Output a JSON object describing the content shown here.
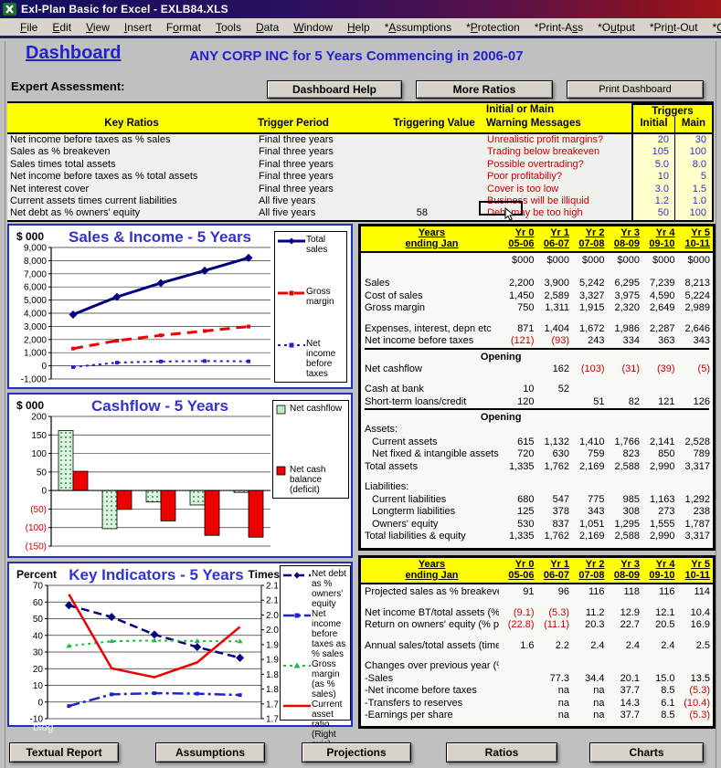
{
  "window": {
    "title": "Exl-Plan Basic for Excel - EXLB84.XLS"
  },
  "menu": {
    "items": [
      {
        "label": "File",
        "accel": 0
      },
      {
        "label": "Edit",
        "accel": 0
      },
      {
        "label": "View",
        "accel": 0
      },
      {
        "label": "Insert",
        "accel": 0
      },
      {
        "label": "Format",
        "accel": 1
      },
      {
        "label": "Tools",
        "accel": 0
      },
      {
        "label": "Data",
        "accel": 0
      },
      {
        "label": "Window",
        "accel": 0
      },
      {
        "label": "Help",
        "accel": 0
      },
      {
        "label": "*Assumptions",
        "accel": 1
      },
      {
        "label": "*Protection",
        "accel": 1
      },
      {
        "label": "*Print-Ass",
        "accel": 8
      },
      {
        "label": "*Output",
        "accel": 2
      },
      {
        "label": "*Print-Out",
        "accel": 4
      },
      {
        "label": "*Charts",
        "accel": 1
      }
    ]
  },
  "header": {
    "dashboard_label": "Dashboard",
    "title": "ANY CORP INC for 5 Years Commencing in 2006-07",
    "expert_assessment": "Expert Assessment:",
    "buttons": [
      "Dashboard Help",
      "More Ratios",
      "Print Dashboard"
    ]
  },
  "assessment": {
    "headers": {
      "key_ratios": "Key Ratios",
      "trigger_period": "Trigger Period",
      "triggering_value": "Triggering Value",
      "initial_or_main": "Initial or Main",
      "warning_messages": "Warning Messages",
      "triggers": "Triggers",
      "initial": "Initial",
      "main": "Main"
    },
    "rows": [
      {
        "ratio": "Net income before taxes as % sales",
        "period": "Final three years",
        "value": "",
        "warning": "Unrealistic profit margins?",
        "initial": "20",
        "main": "30"
      },
      {
        "ratio": "Sales as % breakeven",
        "period": "Final three years",
        "value": "",
        "warning": "Trading below breakeven",
        "initial": "105",
        "main": "100"
      },
      {
        "ratio": "Sales times total assets",
        "period": "Final three years",
        "value": "",
        "warning": "Possible overtrading?",
        "initial": "5.0",
        "main": "8.0"
      },
      {
        "ratio": "Net income before taxes as % total assets",
        "period": "Final three years",
        "value": "",
        "warning": "Poor profitabiliy?",
        "initial": "10",
        "main": "5"
      },
      {
        "ratio": "Net interest cover",
        "period": "Final three years",
        "value": "",
        "warning": "Cover is too low",
        "initial": "3.0",
        "main": "1.5"
      },
      {
        "ratio": "Current assets times current liabilities",
        "period": "All five years",
        "value": "",
        "warning": "Business will be illiquid",
        "initial": "1.2",
        "main": "1.0"
      },
      {
        "ratio": "Net debt as % owners' equity",
        "period": "All five years",
        "value": "58",
        "warning": "Debt may be too high",
        "initial": "50",
        "main": "100"
      }
    ]
  },
  "charts": [
    {
      "type": "line",
      "title": "Sales & Income - 5 Years",
      "unit_label": "$ 000",
      "y_ticks": [
        "9,000",
        "8,000",
        "7,000",
        "6,000",
        "5,000",
        "4,000",
        "3,000",
        "2,000",
        "1,000",
        "0",
        "-1,000"
      ],
      "y_min": -1000,
      "y_max": 9000,
      "series": [
        {
          "name": "Total sales",
          "color": "#000080",
          "dash": "",
          "width": 3,
          "marker": "diamond",
          "values": [
            3900,
            5242,
            6295,
            7239,
            8213
          ]
        },
        {
          "name": "Gross margin",
          "color": "#ee0000",
          "dash": "11,7",
          "width": 3,
          "marker": "square",
          "values": [
            1311,
            1915,
            2320,
            2649,
            2989
          ]
        },
        {
          "name": "Net income before taxes",
          "color": "#2222cc",
          "dash": "3,4",
          "width": 2,
          "marker": "square",
          "values": [
            -93,
            243,
            334,
            363,
            343
          ]
        }
      ]
    },
    {
      "type": "bar",
      "title": "Cashflow - 5 Years",
      "unit_label": "$ 000",
      "y_ticks": [
        "200",
        "150",
        "100",
        "50",
        "0",
        "(50)",
        "(100)",
        "(150)"
      ],
      "y_min": -150,
      "y_max": 200,
      "series": [
        {
          "name": "Net cashflow",
          "fill": "pattern-green",
          "values": [
            162,
            -103,
            -31,
            -39,
            -5
          ]
        },
        {
          "name": "Net cash balance (deficit)",
          "fill": "#ee0000",
          "values": [
            52,
            -51,
            -82,
            -121,
            -126
          ]
        }
      ]
    },
    {
      "type": "dual-line",
      "title": "Key Indicators - 5 Years",
      "left_label": "Percent",
      "right_label": "Times",
      "left_ticks": [
        "70",
        "60",
        "50",
        "40",
        "30",
        "20",
        "10",
        "0",
        "-10"
      ],
      "left_min": -10,
      "left_max": 70,
      "right_ticks": [
        "2.1",
        "2.1",
        "2.0",
        "2.0",
        "1.9",
        "1.9",
        "1.8",
        "1.8",
        "1.7",
        "1.7"
      ],
      "right_min": 1.65,
      "right_max": 2.1,
      "series": [
        {
          "name": "Net debt as % owners' equity",
          "axis": "left",
          "color": "#000080",
          "dash": "9,5",
          "width": 2.5,
          "marker": "diamond",
          "values": [
            58,
            51,
            40.5,
            33,
            26.5
          ]
        },
        {
          "name": "Net income before taxes as % sales",
          "axis": "left",
          "color": "#2222cc",
          "dash": "12,4,3,4",
          "width": 2.5,
          "marker": "square",
          "values": [
            -2.4,
            4.6,
            5.3,
            5.0,
            4.2
          ]
        },
        {
          "name": "Gross margin (as % sales)",
          "axis": "left",
          "color": "#22bb44",
          "dash": "3,4",
          "width": 2,
          "marker": "triangle",
          "values": [
            33.6,
            36.5,
            36.9,
            36.6,
            36.4
          ]
        },
        {
          "name": "Current asset ratio (Right axis)",
          "axis": "right",
          "color": "#ee0000",
          "dash": "",
          "width": 2.5,
          "marker": "none",
          "values": [
            2.07,
            1.82,
            1.79,
            1.84,
            1.96
          ]
        }
      ]
    }
  ],
  "tables": [
    {
      "title_line1": "Years",
      "title_line2": "ending Jan",
      "years": [
        [
          "Yr 0",
          "05-06"
        ],
        [
          "Yr 1",
          "06-07"
        ],
        [
          "Yr 2",
          "07-08"
        ],
        [
          "Yr 3",
          "08-09"
        ],
        [
          "Yr 4",
          "09-10"
        ],
        [
          "Yr 5",
          "10-11"
        ]
      ],
      "rows": [
        {
          "t": "units",
          "vals": [
            "$000",
            "$000",
            "$000",
            "$000",
            "$000",
            "$000"
          ]
        },
        {
          "t": "gap"
        },
        {
          "t": "row",
          "label": "Sales",
          "vals": [
            "2,200",
            "3,900",
            "5,242",
            "6,295",
            "7,239",
            "8,213"
          ]
        },
        {
          "t": "row",
          "label": "Cost of sales",
          "vals": [
            "1,450",
            "2,589",
            "3,327",
            "3,975",
            "4,590",
            "5,224"
          ]
        },
        {
          "t": "row",
          "label": "Gross margin",
          "vals": [
            "750",
            "1,311",
            "1,915",
            "2,320",
            "2,649",
            "2,989"
          ]
        },
        {
          "t": "gap"
        },
        {
          "t": "row",
          "label": "Expenses, interest, depn etc",
          "vals": [
            "871",
            "1,404",
            "1,672",
            "1,986",
            "2,287",
            "2,646"
          ]
        },
        {
          "t": "row",
          "label": "Net income before taxes",
          "vals": [
            "(121)",
            "(93)",
            "243",
            "334",
            "363",
            "343"
          ]
        },
        {
          "t": "open",
          "label": "Opening"
        },
        {
          "t": "row",
          "label": "Net cashflow",
          "vals": [
            "",
            "162",
            "(103)",
            "(31)",
            "(39)",
            "(5)"
          ]
        },
        {
          "t": "gap"
        },
        {
          "t": "row",
          "label": "Cash at bank",
          "vals": [
            "10",
            "52",
            "",
            "",
            "",
            ""
          ]
        },
        {
          "t": "row",
          "label": "Short-term loans/credit",
          "vals": [
            "120",
            "",
            "51",
            "82",
            "121",
            "126"
          ]
        },
        {
          "t": "open",
          "label": "Opening"
        },
        {
          "t": "section",
          "label": "Assets:"
        },
        {
          "t": "row",
          "label": "Current assets",
          "ind": true,
          "vals": [
            "615",
            "1,132",
            "1,410",
            "1,766",
            "2,141",
            "2,528"
          ]
        },
        {
          "t": "row",
          "label": "Net fixed & intangible assets",
          "ind": true,
          "vals": [
            "720",
            "630",
            "759",
            "823",
            "850",
            "789"
          ]
        },
        {
          "t": "row",
          "label": "Total assets",
          "vals": [
            "1,335",
            "1,762",
            "2,169",
            "2,588",
            "2,990",
            "3,317"
          ]
        },
        {
          "t": "gap"
        },
        {
          "t": "section",
          "label": "Liabilities:"
        },
        {
          "t": "row",
          "label": "Current liabilities",
          "ind": true,
          "vals": [
            "680",
            "547",
            "775",
            "985",
            "1,163",
            "1,292"
          ]
        },
        {
          "t": "row",
          "label": "Longterm liabilities",
          "ind": true,
          "vals": [
            "125",
            "378",
            "343",
            "308",
            "273",
            "238"
          ]
        },
        {
          "t": "row",
          "label": "Owners' equity",
          "ind": true,
          "vals": [
            "530",
            "837",
            "1,051",
            "1,295",
            "1,555",
            "1,787"
          ]
        },
        {
          "t": "row",
          "label": "Total liabilities & equity",
          "vals": [
            "1,335",
            "1,762",
            "2,169",
            "2,588",
            "2,990",
            "3,317"
          ]
        }
      ]
    },
    {
      "title_line1": "Years",
      "title_line2": "ending Jan",
      "years": [
        [
          "Yr 0",
          "05-06"
        ],
        [
          "Yr 1",
          "06-07"
        ],
        [
          "Yr 2",
          "07-08"
        ],
        [
          "Yr 3",
          "08-09"
        ],
        [
          "Yr 4",
          "09-10"
        ],
        [
          "Yr 5",
          "10-11"
        ]
      ],
      "rows": [
        {
          "t": "row",
          "label": "Projected sales as % breakeven",
          "vals": [
            "91",
            "96",
            "116",
            "118",
            "116",
            "114"
          ]
        },
        {
          "t": "gap"
        },
        {
          "t": "row",
          "label": "Net income BT/total assets (% p",
          "vals": [
            "(9.1)",
            "(5.3)",
            "11.2",
            "12.9",
            "12.1",
            "10.4"
          ]
        },
        {
          "t": "row",
          "label": "Return on owners' equity (% pa)",
          "vals": [
            "(22.8)",
            "(11.1)",
            "20.3",
            "22.7",
            "20.5",
            "16.9"
          ]
        },
        {
          "t": "gap"
        },
        {
          "t": "row",
          "label": "Annual sales/total assets (times",
          "vals": [
            "1.6",
            "2.2",
            "2.4",
            "2.4",
            "2.4",
            "2.5"
          ]
        },
        {
          "t": "gap"
        },
        {
          "t": "section",
          "label": "Changes over previous year (%):"
        },
        {
          "t": "row",
          "label": "-Sales",
          "vals": [
            "",
            "77.3",
            "34.4",
            "20.1",
            "15.0",
            "13.5"
          ]
        },
        {
          "t": "row",
          "label": "-Net income before taxes",
          "vals": [
            "",
            "na",
            "na",
            "37.7",
            "8.5",
            "(5.3)"
          ]
        },
        {
          "t": "row",
          "label": "-Transfers to reserves",
          "vals": [
            "",
            "na",
            "na",
            "14.3",
            "6.1",
            "(10.4)"
          ]
        },
        {
          "t": "row",
          "label": "-Earnings per share",
          "vals": [
            "",
            "na",
            "na",
            "37.7",
            "8.5",
            "(5.3)"
          ]
        }
      ]
    }
  ],
  "bottom_buttons": [
    "Textual Report",
    "Assumptions",
    "Projections",
    "Ratios",
    "Charts"
  ],
  "watermark": "blog",
  "colors": {
    "header_blue": "#2222cc",
    "warning_red": "#cc0000",
    "yellow": "#ffff00",
    "pale_yellow": "#ffffcc",
    "trigger_blue": "#3333cc",
    "chart_border": "#2233bb"
  }
}
